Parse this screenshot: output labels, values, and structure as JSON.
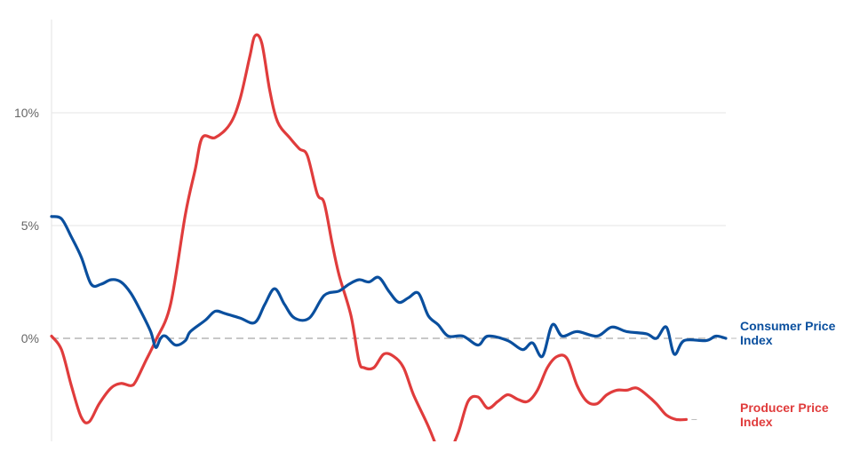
{
  "chart_data": {
    "type": "line",
    "ylim": [
      -4.8,
      14
    ],
    "xlim": [
      0,
      100
    ],
    "grid": true,
    "yticks": [
      {
        "value": 0,
        "label": "0%"
      },
      {
        "value": 5,
        "label": "5%"
      },
      {
        "value": 10,
        "label": "10%"
      }
    ],
    "series": [
      {
        "name": "Consumer Price Index",
        "color": "#0a4f9e",
        "points": [
          [
            0,
            5.4
          ],
          [
            1,
            5.3
          ],
          [
            2,
            4.5
          ],
          [
            3,
            3.6
          ],
          [
            4,
            2.4
          ],
          [
            5,
            2.4
          ],
          [
            6,
            2.6
          ],
          [
            7,
            2.5
          ],
          [
            8,
            2.0
          ],
          [
            9,
            1.2
          ],
          [
            10,
            0.3
          ],
          [
            10.5,
            -0.4
          ],
          [
            11,
            0.0
          ],
          [
            11.5,
            0.1
          ],
          [
            12.5,
            -0.3
          ],
          [
            13.5,
            -0.1
          ],
          [
            14,
            0.3
          ],
          [
            15.5,
            0.8
          ],
          [
            16.5,
            1.2
          ],
          [
            17.5,
            1.1
          ],
          [
            19,
            0.9
          ],
          [
            20.5,
            0.7
          ],
          [
            21.5,
            1.5
          ],
          [
            22.5,
            2.2
          ],
          [
            23.5,
            1.5
          ],
          [
            24.5,
            0.9
          ],
          [
            26,
            0.9
          ],
          [
            27.5,
            1.9
          ],
          [
            29,
            2.1
          ],
          [
            30,
            2.4
          ],
          [
            31,
            2.6
          ],
          [
            32,
            2.5
          ],
          [
            33,
            2.7
          ],
          [
            34,
            2.1
          ],
          [
            35,
            1.6
          ],
          [
            36,
            1.8
          ],
          [
            37,
            2.0
          ],
          [
            38,
            1.0
          ],
          [
            39,
            0.6
          ],
          [
            40,
            0.1
          ],
          [
            41.5,
            0.1
          ],
          [
            43,
            -0.3
          ],
          [
            44,
            0.1
          ],
          [
            46,
            -0.1
          ],
          [
            47.5,
            -0.5
          ],
          [
            48.5,
            -0.2
          ],
          [
            49.5,
            -0.8
          ],
          [
            50.5,
            0.6
          ],
          [
            51.5,
            0.1
          ],
          [
            53,
            0.3
          ],
          [
            55,
            0.1
          ],
          [
            56.5,
            0.5
          ],
          [
            58,
            0.3
          ],
          [
            60,
            0.2
          ],
          [
            61,
            0.0
          ],
          [
            62,
            0.5
          ],
          [
            62.8,
            -0.7
          ],
          [
            63.8,
            -0.1
          ],
          [
            66,
            -0.1
          ],
          [
            67,
            0.1
          ],
          [
            68,
            0.0
          ]
        ]
      },
      {
        "name": "Producer Price Index",
        "color": "#e03c3c",
        "points": [
          [
            0,
            0.1
          ],
          [
            1,
            -0.5
          ],
          [
            2,
            -2.1
          ],
          [
            3,
            -3.5
          ],
          [
            3.8,
            -3.7
          ],
          [
            4.8,
            -2.9
          ],
          [
            6,
            -2.2
          ],
          [
            7,
            -2.0
          ],
          [
            8,
            -2.1
          ],
          [
            8.5,
            -1.9
          ],
          [
            9.5,
            -1.0
          ],
          [
            10.5,
            -0.1
          ],
          [
            12,
            1.5
          ],
          [
            13.5,
            5.5
          ],
          [
            14.5,
            7.5
          ],
          [
            15.2,
            8.9
          ],
          [
            16.5,
            8.9
          ],
          [
            18,
            9.5
          ],
          [
            19,
            10.6
          ],
          [
            20,
            12.5
          ],
          [
            20.5,
            13.4
          ],
          [
            21.2,
            13.1
          ],
          [
            22,
            11.0
          ],
          [
            22.8,
            9.6
          ],
          [
            24,
            8.9
          ],
          [
            25,
            8.4
          ],
          [
            25.8,
            8.1
          ],
          [
            26.8,
            6.4
          ],
          [
            27.5,
            6.0
          ],
          [
            28.3,
            4.2
          ],
          [
            29,
            2.8
          ],
          [
            30.2,
            1.0
          ],
          [
            31,
            -1.0
          ],
          [
            31.5,
            -1.3
          ],
          [
            32.5,
            -1.3
          ],
          [
            33.5,
            -0.7
          ],
          [
            34.5,
            -0.8
          ],
          [
            35.5,
            -1.3
          ],
          [
            36.5,
            -2.5
          ],
          [
            38,
            -3.9
          ],
          [
            39,
            -5.0
          ],
          [
            39.5,
            -5.5
          ],
          [
            40,
            -5.2
          ],
          [
            41,
            -4.2
          ],
          [
            42,
            -2.8
          ],
          [
            43,
            -2.6
          ],
          [
            44,
            -3.1
          ],
          [
            45,
            -2.8
          ],
          [
            46,
            -2.5
          ],
          [
            47,
            -2.7
          ],
          [
            48,
            -2.8
          ],
          [
            49,
            -2.3
          ],
          [
            50,
            -1.3
          ],
          [
            51,
            -0.8
          ],
          [
            52,
            -0.9
          ],
          [
            53,
            -2.1
          ],
          [
            54,
            -2.8
          ],
          [
            55,
            -2.9
          ],
          [
            56,
            -2.5
          ],
          [
            57,
            -2.3
          ],
          [
            58,
            -2.3
          ],
          [
            59,
            -2.2
          ],
          [
            60,
            -2.5
          ],
          [
            61,
            -2.9
          ],
          [
            62,
            -3.4
          ],
          [
            63,
            -3.6
          ],
          [
            64,
            -3.6
          ]
        ]
      }
    ]
  }
}
